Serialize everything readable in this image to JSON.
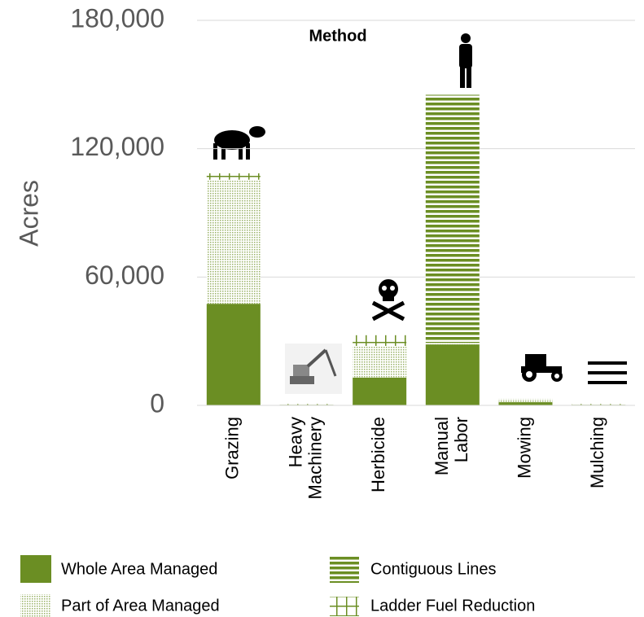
{
  "chart_data": {
    "type": "stacked_bar",
    "title": "Method",
    "y_label": "Acres",
    "categories": [
      "Grazing",
      "Heavy\nMachinery",
      "Herbicide",
      "Manual\nLabor",
      "Mowing",
      "Mulching"
    ],
    "series": [
      {
        "name": "Whole Area Managed",
        "color": "#6b8e23",
        "pattern": "solid",
        "values": [
          47500,
          300,
          13000,
          28500,
          1500,
          300
        ]
      },
      {
        "name": "Part of Area Managed",
        "color": "#6b8e23",
        "pattern": "dots",
        "values": [
          58000,
          0,
          14800,
          700,
          1500,
          0
        ]
      },
      {
        "name": "Contiguous Lines",
        "color": "#6b8e23",
        "pattern": "lines",
        "values": [
          0,
          0,
          0,
          116000,
          0,
          0
        ]
      },
      {
        "name": "Ladder Fuel Reduction",
        "color": "#6b8e23",
        "pattern": "grid",
        "values": [
          3000,
          300,
          5000,
          0,
          0,
          300
        ]
      }
    ],
    "ylim": [
      0,
      180000
    ],
    "yticks": [
      0,
      {
        "value": 60000,
        "label": "60,000"
      },
      {
        "value": 120000,
        "label": "120,000"
      },
      {
        "value": 180000,
        "label": "180,000"
      }
    ],
    "grid": true
  }
}
